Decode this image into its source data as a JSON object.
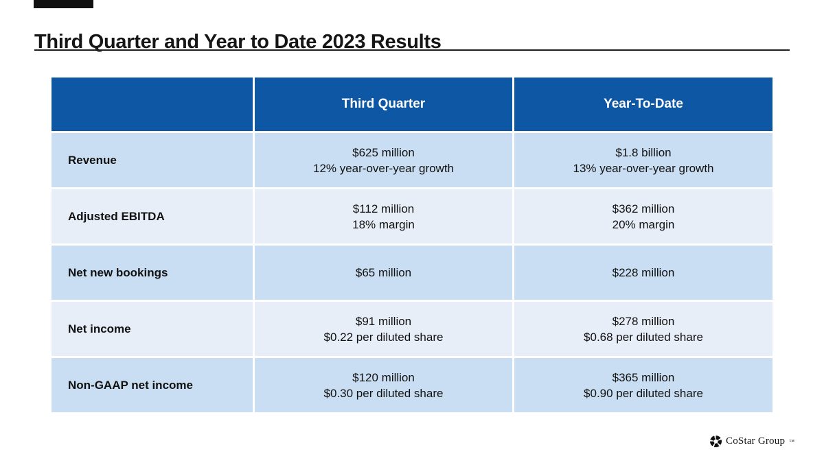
{
  "slide": {
    "title": "Third Quarter and Year to Date 2023 Results"
  },
  "table": {
    "headers": {
      "col1": "",
      "col2": "Third Quarter",
      "col3": "Year-To-Date"
    },
    "rows": [
      {
        "label": "Revenue",
        "q3_1": "$625 million",
        "q3_2": "12% year-over-year growth",
        "ytd_1": "$1.8 billion",
        "ytd_2": "13% year-over-year growth"
      },
      {
        "label": "Adjusted EBITDA",
        "q3_1": "$112 million",
        "q3_2": "18% margin",
        "ytd_1": "$362 million",
        "ytd_2": "20% margin"
      },
      {
        "label": "Net new bookings",
        "q3_1": "$65 million",
        "ytd_1": "$228 million"
      },
      {
        "label": "Net income",
        "q3_1": "$91 million",
        "q3_2": "$0.22 per diluted share",
        "ytd_1": "$278 million",
        "ytd_2": "$0.68 per diluted share"
      },
      {
        "label": "Non-GAAP net income",
        "q3_1": "$120 million",
        "q3_2": "$0.30 per diluted share",
        "ytd_1": "$365 million",
        "ytd_2": "$0.90 per diluted share"
      }
    ]
  },
  "footer": {
    "logo_text": "CoStar Group",
    "trademark": "™",
    "logo_icon": "costar-pinwheel-icon"
  },
  "colors": {
    "header_bg": "#0D57A5",
    "row_alt1": "#C9DEF2",
    "row_alt2": "#E7EEF8",
    "logo_color": "#111111"
  }
}
